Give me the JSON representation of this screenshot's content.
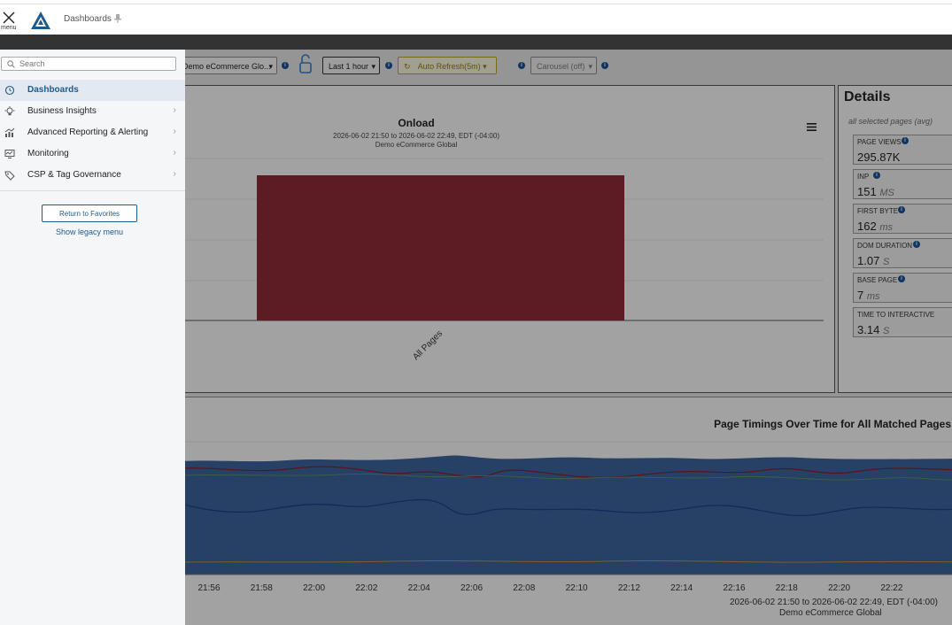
{
  "header": {
    "menu_label": "menu",
    "page_title": "Dashboards"
  },
  "toolbar": {
    "dashboard_select": "Demo eCommerce Glo...",
    "time_range": "Last 1 hour",
    "auto_refresh": "Auto Refresh(5m)",
    "carousel": "Carousel (off)"
  },
  "onload_chart": {
    "title": "Onload",
    "subtitle": "2026-06-02 21:50 to 2026-06-02 22:49, EDT (-04:00)",
    "site": "Demo eCommerce Global",
    "chart_data": {
      "type": "bar",
      "categories": [
        "All Pages"
      ],
      "values": [
        1
      ],
      "bar_color": "#8a2a35"
    }
  },
  "details": {
    "title": "Details",
    "subtitle": "all selected pages (avg)",
    "metrics": [
      {
        "label": "PAGE VIEWS",
        "value": "295.87K",
        "unit": ""
      },
      {
        "label": "INP",
        "value": "151",
        "unit": "MS"
      },
      {
        "label": "FIRST BYTE",
        "value": "162",
        "unit": "ms"
      },
      {
        "label": "DOM DURATION",
        "value": "1.07",
        "unit": "S"
      },
      {
        "label": "BASE PAGE",
        "value": "7",
        "unit": "ms"
      },
      {
        "label": "TIME TO INTERACTIVE",
        "value": "3.14",
        "unit": "S"
      }
    ]
  },
  "timings_chart": {
    "title": "Page Timings Over Time for All Matched Pages",
    "range": "2026-06-02 21:50 to 2026-06-02 22:49, EDT (-04:00)",
    "site": "Demo eCommerce Global",
    "chart_data": {
      "type": "area",
      "x": [
        "21:56",
        "21:58",
        "22:00",
        "22:02",
        "22:04",
        "22:06",
        "22:08",
        "22:10",
        "22:12",
        "22:14",
        "22:16",
        "22:18",
        "22:20",
        "22:22"
      ],
      "colors": {
        "area": "#3a5f96",
        "line_red": "#8a1a2a",
        "line_green": "#5a8a6a",
        "line_blue": "#1d3f80",
        "line_orange": "#c08a30"
      }
    }
  },
  "sidebar": {
    "search_placeholder": "Search",
    "items": [
      {
        "label": "Dashboards",
        "icon": "clock-icon",
        "active": true
      },
      {
        "label": "Business Insights",
        "icon": "lightbulb-icon"
      },
      {
        "label": "Advanced Reporting & Alerting",
        "icon": "chart-icon"
      },
      {
        "label": "Monitoring",
        "icon": "monitor-icon"
      },
      {
        "label": "CSP & Tag Governance",
        "icon": "tag-icon"
      }
    ],
    "return_button": "Return to Favorites",
    "legacy_link": "Show legacy menu"
  }
}
